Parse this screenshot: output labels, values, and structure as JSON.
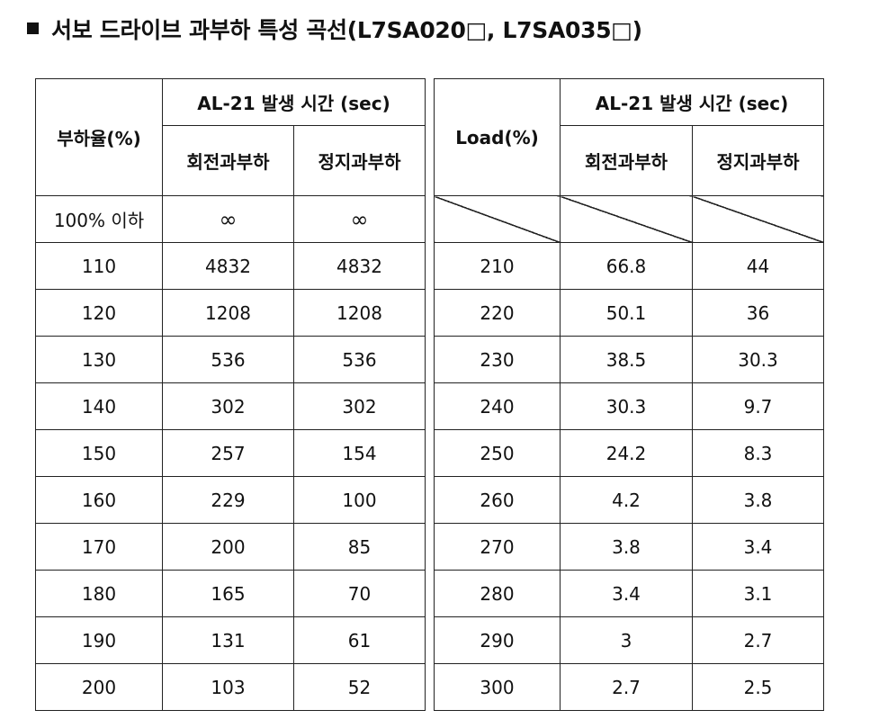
{
  "title": "서보 드라이브 과부하 특성 곡선(L7SA020□, L7SA035□)",
  "left_table": {
    "col_label": "부하율(%)",
    "group_label": "AL-21 발생 시간 (sec)",
    "sub_labels": [
      "회전과부하",
      "정지과부하"
    ],
    "rows": [
      [
        "100% 이하",
        "∞",
        "∞"
      ],
      [
        "110",
        "4832",
        "4832"
      ],
      [
        "120",
        "1208",
        "1208"
      ],
      [
        "130",
        "536",
        "536"
      ],
      [
        "140",
        "302",
        "302"
      ],
      [
        "150",
        "257",
        "154"
      ],
      [
        "160",
        "229",
        "100"
      ],
      [
        "170",
        "200",
        "85"
      ],
      [
        "180",
        "165",
        "70"
      ],
      [
        "190",
        "131",
        "61"
      ],
      [
        "200",
        "103",
        "52"
      ]
    ]
  },
  "right_table": {
    "col_label": "Load(%)",
    "group_label": "AL-21 발생 시간 (sec)",
    "sub_labels": [
      "회전과부하",
      "정지과부하"
    ],
    "rows": [
      [
        "210",
        "66.8",
        "44"
      ],
      [
        "220",
        "50.1",
        "36"
      ],
      [
        "230",
        "38.5",
        "30.3"
      ],
      [
        "240",
        "30.3",
        "9.7"
      ],
      [
        "250",
        "24.2",
        "8.3"
      ],
      [
        "260",
        "4.2",
        "3.8"
      ],
      [
        "270",
        "3.8",
        "3.4"
      ],
      [
        "280",
        "3.4",
        "3.1"
      ],
      [
        "290",
        "3",
        "2.7"
      ],
      [
        "300",
        "2.7",
        "2.5"
      ]
    ]
  }
}
